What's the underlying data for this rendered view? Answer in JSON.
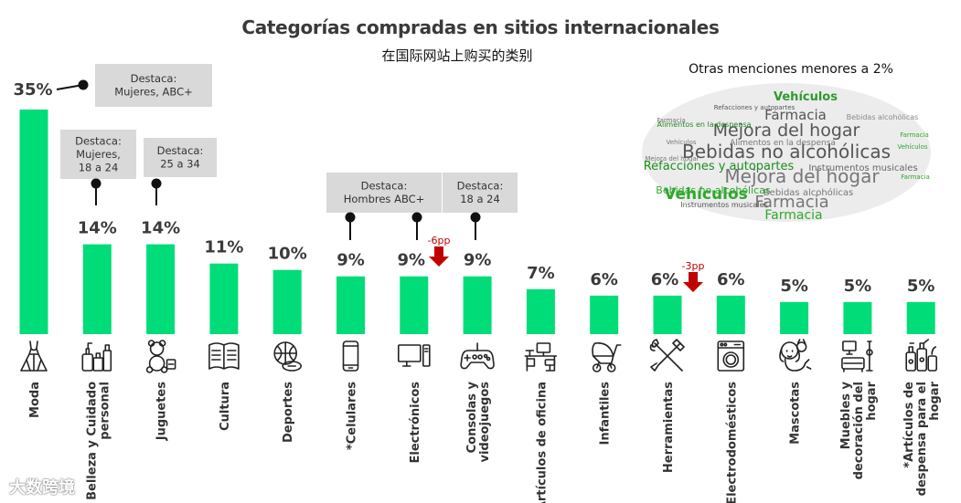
{
  "chart_data": {
    "type": "bar",
    "title": "Categorías compradas en sitios internacionales",
    "subtitle": "在国际网站上购买的类别",
    "unit": "%",
    "ylim": [
      0,
      36
    ],
    "categories": [
      "Moda",
      "Belleza y Cuidado personal",
      "Juguetes",
      "Cultura",
      "Deportes",
      "*Celulares",
      "Electrónicos",
      "Consolas y videojuegos",
      "Artículos de oficina",
      "Infantiles",
      "Herramientas",
      "Electrodomésticos",
      "Mascotas",
      "Muebles y decoración del hogar",
      "*Artículos de despensa para el hogar"
    ],
    "values": [
      35,
      14,
      14,
      11,
      10,
      9,
      9,
      9,
      7,
      6,
      6,
      6,
      5,
      5,
      5
    ],
    "labels": [
      "35%",
      "14%",
      "14%",
      "11%",
      "10%",
      "9%",
      "9%",
      "9%",
      "7%",
      "6%",
      "6%",
      "6%",
      "5%",
      "5%",
      "5%"
    ],
    "icons": [
      "dress-icon",
      "cosmetics-icon",
      "teddy-bear-icon",
      "book-icon",
      "sports-ball-icon",
      "smartphone-icon",
      "computer-icon",
      "gamepad-icon",
      "office-desk-icon",
      "stroller-icon",
      "tools-icon",
      "washing-machine-icon",
      "pet-icon",
      "furniture-icon",
      "cleaning-supplies-icon"
    ],
    "bar_color": "#00dc78",
    "callouts": [
      {
        "category_index": 0,
        "lines": [
          "Destaca:",
          "Mujeres, ABC+"
        ]
      },
      {
        "category_index": 1,
        "lines": [
          "Destaca:",
          "Mujeres,",
          "18 a 24"
        ]
      },
      {
        "category_index": 2,
        "lines": [
          "Destaca:",
          "25 a 34"
        ]
      },
      {
        "category_index": 5,
        "lines": [
          "Destaca:",
          "Hombres ABC+"
        ]
      },
      {
        "category_index": 7,
        "lines": [
          "Destaca:",
          "18 a 24"
        ]
      }
    ],
    "changes": [
      {
        "category_index": 6,
        "label": "-6pp"
      },
      {
        "category_index": 10,
        "label": "-3pp"
      }
    ],
    "word_cloud": {
      "title": "Otras menciones menores a 2%",
      "words": [
        {
          "text": "Vehículos",
          "color": "#2e9a2e"
        },
        {
          "text": "Refacciones y autopartes",
          "color": "#555555"
        },
        {
          "text": "Farmacia",
          "color": "#555555"
        },
        {
          "text": "Bebidas alcohólicas",
          "color": "#8a8a8a"
        },
        {
          "text": "Mejora del hogar",
          "color": "#555555"
        },
        {
          "text": "Alimentos en la despensa",
          "color": "#1e8c1e"
        },
        {
          "text": "Alimentos en la despensa",
          "color": "#777777"
        },
        {
          "text": "Bebidas no alcohólicas",
          "color": "#555555"
        },
        {
          "text": "Refacciones y autopartes",
          "color": "#1e8c1e"
        },
        {
          "text": "Instrumentos musicales",
          "color": "#666666"
        },
        {
          "text": "Bebidas no alcohólicas",
          "color": "#2ea82e"
        },
        {
          "text": "Mejora del hogar",
          "color": "#777777"
        },
        {
          "text": "Bebidas alcohólicas",
          "color": "#777777"
        },
        {
          "text": "Vehículos",
          "color": "#2ea82e"
        },
        {
          "text": "Farmacia",
          "color": "#777777"
        },
        {
          "text": "Instrumentos musicales",
          "color": "#555555"
        },
        {
          "text": "Farmacia",
          "color": "#2ea82e"
        }
      ]
    }
  },
  "watermark": "大数跨境"
}
